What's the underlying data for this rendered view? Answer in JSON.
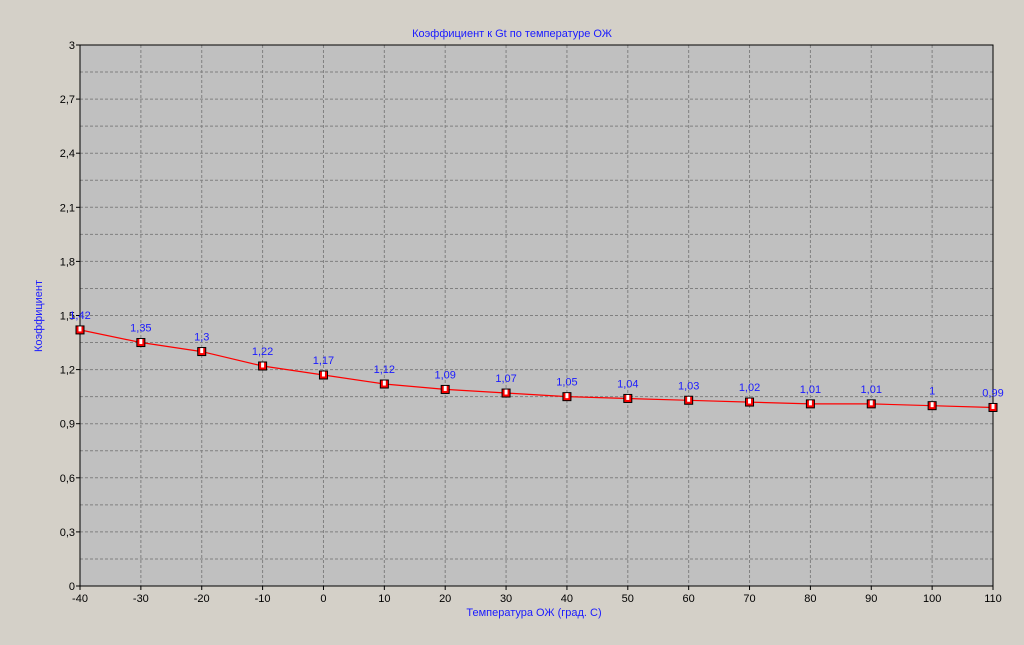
{
  "chart_data": {
    "type": "line",
    "title": "Коэффициент к Gt по температуре ОЖ",
    "xlabel": "Температура ОЖ (град. С)",
    "ylabel": "Коэффициент",
    "x": [
      -40,
      -30,
      -20,
      -10,
      0,
      10,
      20,
      30,
      40,
      50,
      60,
      70,
      80,
      90,
      100,
      110
    ],
    "xticks": [
      "-40",
      "-30",
      "-20",
      "-10",
      "0",
      "10",
      "20",
      "30",
      "40",
      "50",
      "60",
      "70",
      "80",
      "90",
      "100",
      "110"
    ],
    "yticks": [
      "0",
      "0,3",
      "0,6",
      "0,9",
      "1,2",
      "1,5",
      "1,8",
      "2,1",
      "2,4",
      "2,7",
      "3"
    ],
    "xlim": [
      -40,
      110
    ],
    "ylim": [
      0,
      3
    ],
    "grid": true,
    "series": [
      {
        "color": "#ff0000",
        "marker_color": "#cc0000",
        "label_color": "#1a1aff",
        "values": [
          1.42,
          1.35,
          1.3,
          1.22,
          1.17,
          1.12,
          1.09,
          1.07,
          1.05,
          1.04,
          1.03,
          1.02,
          1.01,
          1.01,
          1,
          0.99
        ],
        "labels": [
          "1,42",
          "1,35",
          "1,3",
          "1,22",
          "1,17",
          "1,12",
          "1,09",
          "1,07",
          "1,05",
          "1,04",
          "1,03",
          "1,02",
          "1,01",
          "1,01",
          "1",
          "0,99"
        ]
      }
    ],
    "colors": {
      "background": "#d4d0c8",
      "plot_background": "#c0c0c0",
      "grid": "#808080",
      "text": "#1a1aff",
      "axis": "#000000"
    }
  }
}
